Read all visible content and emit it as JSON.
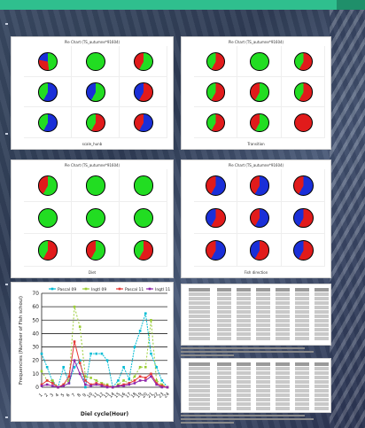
{
  "colors": {
    "accent": "#2fbf8e",
    "pie_blue": "#1a2fd8",
    "pie_green": "#22dd22",
    "pie_red": "#e11b1b",
    "series_1": "#00bcd4",
    "series_2": "#9acd32",
    "series_3": "#e53935",
    "series_4": "#8e24aa"
  },
  "pie_panels": [
    {
      "title": "Pie Chart (TS_autumne*91604)",
      "xlabel": "scale_hunb",
      "pies": [
        [
          "green-red-blue",
          "green",
          "green-red"
        ],
        [
          "blue-green",
          "green-blue",
          "red-blue"
        ],
        [
          "blue-green",
          "red-green",
          "blue-red"
        ]
      ]
    },
    {
      "title": "Pie Chart (TS_autumne*91604)",
      "xlabel": "Transition",
      "pies": [
        [
          "red-green",
          "green",
          "red-green"
        ],
        [
          "red-green",
          "green-red",
          "red-green"
        ],
        [
          "red-green",
          "green-red",
          "red"
        ]
      ]
    },
    {
      "title": "Pie Chart (TS_autumne*91604)",
      "xlabel": "Diet",
      "pies": [
        [
          "green-red",
          "green",
          "green"
        ],
        [
          "green",
          "green",
          "green"
        ],
        [
          "red-green",
          "green-red",
          "red-green"
        ]
      ]
    },
    {
      "title": "Pie Chart (TS_autumne*91604)",
      "xlabel": "Fish direction",
      "pies": [
        [
          "blue-red",
          "blue-red",
          "blue-red"
        ],
        [
          "red-blue",
          "blue-red",
          "red-blue"
        ],
        [
          "blue-red",
          "red-blue",
          "red-blue"
        ]
      ]
    }
  ],
  "chart_data": {
    "type": "line",
    "title": "",
    "xlabel": "Diel cycle(Hour)",
    "ylabel": "Frequencies (Number of Fish schoul)",
    "ylim": [
      0,
      70
    ],
    "yticks": [
      0,
      10,
      20,
      30,
      40,
      50,
      60,
      70
    ],
    "x": [
      1,
      2,
      3,
      4,
      5,
      6,
      7,
      8,
      9,
      10,
      11,
      12,
      13,
      14,
      15,
      16,
      17,
      18,
      19,
      20,
      21,
      22,
      23,
      24
    ],
    "series": [
      {
        "name": "Pascal 09",
        "color": "#00bcd4",
        "values": [
          25,
          15,
          4,
          0,
          15,
          3,
          15,
          20,
          0,
          25,
          25,
          25,
          20,
          0,
          5,
          15,
          6,
          30,
          42,
          55,
          25,
          15,
          5,
          0
        ]
      },
      {
        "name": "Ingtl 09",
        "color": "#9acd32",
        "values": [
          12,
          5,
          5,
          0,
          2,
          5,
          60,
          45,
          8,
          7,
          5,
          3,
          2,
          0,
          2,
          5,
          3,
          8,
          15,
          15,
          50,
          5,
          2,
          0
        ]
      },
      {
        "name": "Pascal 11",
        "color": "#e53935",
        "values": [
          2,
          5,
          3,
          0,
          2,
          8,
          34,
          18,
          5,
          2,
          3,
          2,
          1,
          0,
          1,
          2,
          3,
          5,
          8,
          7,
          10,
          3,
          1,
          0
        ]
      },
      {
        "name": "Ingtl 11",
        "color": "#8e24aa",
        "values": [
          1,
          2,
          1,
          0,
          1,
          3,
          20,
          10,
          2,
          1,
          2,
          1,
          0,
          0,
          1,
          1,
          2,
          3,
          5,
          5,
          8,
          2,
          0,
          0
        ]
      }
    ]
  }
}
